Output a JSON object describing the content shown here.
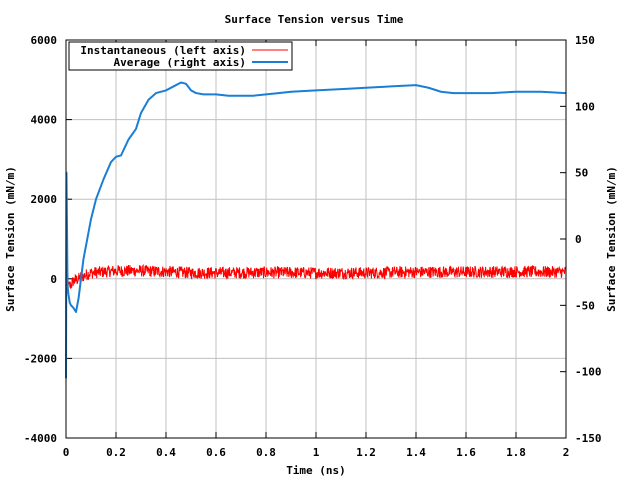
{
  "chart_data": {
    "type": "line",
    "title": "Surface Tension versus Time",
    "xlabel": "Time (ns)",
    "ylabel_left": "Surface Tension (mN/m)",
    "ylabel_right": "Surface Tension (mN/m)",
    "xlim": [
      0,
      2
    ],
    "ylim_left": [
      -4000,
      6000
    ],
    "ylim_right": [
      -150,
      150
    ],
    "x_ticks": [
      "0",
      "0.2",
      "0.4",
      "0.6",
      "0.8",
      "1",
      "1.2",
      "1.4",
      "1.6",
      "1.8",
      "2"
    ],
    "x_tick_values": [
      0,
      0.2,
      0.4,
      0.6,
      0.8,
      1.0,
      1.2,
      1.4,
      1.6,
      1.8,
      2.0
    ],
    "y_left_ticks": [
      "6000",
      "4000",
      "2000",
      "0",
      "-2000",
      "-4000"
    ],
    "y_left_tick_values": [
      6000,
      4000,
      2000,
      0,
      -2000,
      -4000
    ],
    "y_right_ticks": [
      "150",
      "100",
      "50",
      "0",
      "-50",
      "-100",
      "-150"
    ],
    "y_right_tick_values": [
      150,
      100,
      50,
      0,
      -50,
      -100,
      -150
    ],
    "grid": true,
    "legend_position": "top-left",
    "series": [
      {
        "name": "Instantaneous (left axis)",
        "axis": "left",
        "color": "#ff0000",
        "style": "noisy",
        "x": [
          0.0,
          0.005,
          0.01,
          0.02,
          0.03,
          0.05,
          0.08,
          0.1,
          0.2,
          0.3,
          0.4,
          0.5,
          0.6,
          0.8,
          1.0,
          1.2,
          1.4,
          1.6,
          1.8,
          2.0
        ],
        "y": [
          0,
          200,
          -200,
          -150,
          -50,
          0,
          100,
          150,
          200,
          200,
          180,
          150,
          150,
          160,
          150,
          150,
          170,
          170,
          180,
          170
        ],
        "noise_amplitude": 150
      },
      {
        "name": "Average (right axis)",
        "axis": "right",
        "color": "#1a7fd4",
        "style": "smooth",
        "x": [
          0.0,
          0.002,
          0.004,
          0.006,
          0.01,
          0.015,
          0.02,
          0.03,
          0.04,
          0.05,
          0.06,
          0.07,
          0.08,
          0.1,
          0.12,
          0.15,
          0.18,
          0.2,
          0.22,
          0.25,
          0.28,
          0.3,
          0.33,
          0.36,
          0.4,
          0.43,
          0.46,
          0.48,
          0.5,
          0.52,
          0.55,
          0.6,
          0.65,
          0.7,
          0.75,
          0.8,
          0.85,
          0.9,
          1.0,
          1.1,
          1.2,
          1.3,
          1.4,
          1.45,
          1.5,
          1.55,
          1.6,
          1.7,
          1.8,
          1.9,
          2.0
        ],
        "y": [
          -105,
          50,
          10,
          -35,
          -42,
          -48,
          -50,
          -52,
          -55,
          -45,
          -30,
          -15,
          -5,
          15,
          30,
          45,
          58,
          62,
          63,
          75,
          83,
          95,
          105,
          110,
          112,
          115,
          118,
          117,
          112,
          110,
          109,
          109,
          108,
          108,
          108,
          109,
          110,
          111,
          112,
          113,
          114,
          115,
          116,
          114,
          111,
          110,
          110,
          110,
          111,
          111,
          110
        ]
      }
    ]
  }
}
